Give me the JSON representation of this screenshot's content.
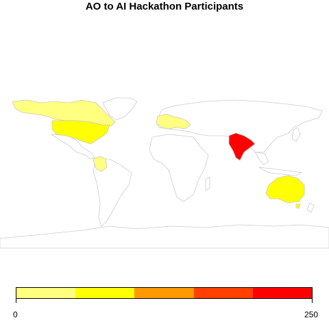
{
  "title": "AO to AI Hackathon Participants",
  "legend": {
    "min_label": "0",
    "max_label": "250",
    "colors": [
      "#ffff80",
      "#ffff00",
      "#ff9900",
      "#ff4000",
      "#ff0000"
    ]
  },
  "regions": [
    {
      "name": "Canada",
      "color": "#ffff80"
    },
    {
      "name": "United States",
      "color": "#ffff00"
    },
    {
      "name": "Colombia",
      "color": "#ffff80"
    },
    {
      "name": "Western Europe",
      "color": "#ffff80"
    },
    {
      "name": "India",
      "color": "#ff0000"
    },
    {
      "name": "Australia",
      "color": "#ffff00"
    }
  ],
  "base_colors": {
    "land": "#ffffff",
    "border": "#c8c8c8"
  }
}
